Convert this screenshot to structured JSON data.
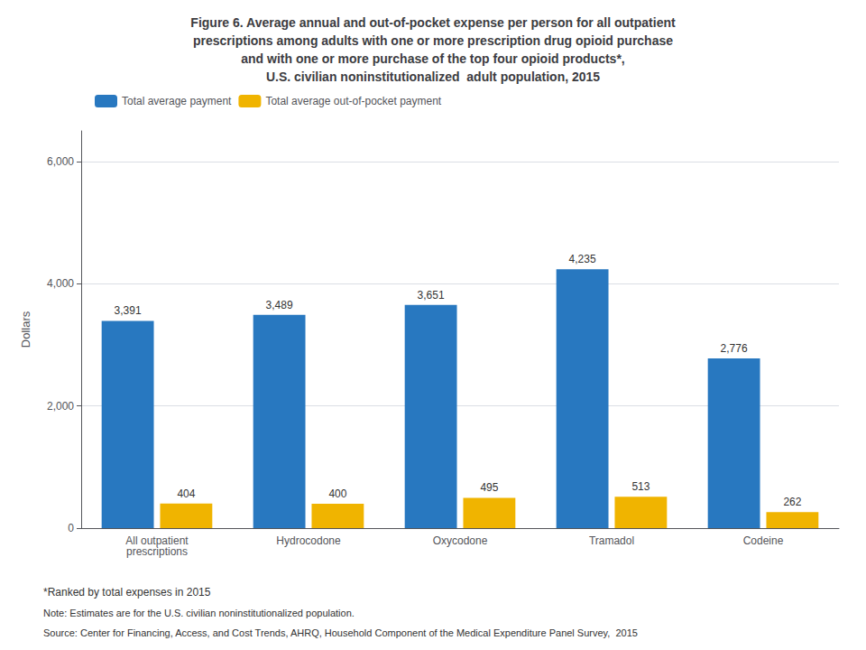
{
  "chart_data": {
    "type": "bar",
    "title": "Figure 6. Average annual and out-of-pocket expense per person for all outpatient\nprescriptions among adults with one or more prescription drug opioid purchase\nand with one or more purchase of the top four opioid products*,\nU.S. civilian noninstitutionalized  adult population, 2015",
    "categories": [
      "All outpatient\nprescriptions",
      "Hydrocodone",
      "Oxycodone",
      "Tramadol",
      "Codeine"
    ],
    "series": [
      {
        "name": "Total average payment",
        "color": "#2878c0",
        "values": [
          3391,
          3489,
          3651,
          4235,
          2776
        ],
        "value_labels": [
          "3,391",
          "3,489",
          "3,651",
          "4,235",
          "2,776"
        ]
      },
      {
        "name": "Total average out-of-pocket payment",
        "color": "#f0b400",
        "values": [
          404,
          400,
          495,
          513,
          262
        ],
        "value_labels": [
          "404",
          "400",
          "495",
          "513",
          "262"
        ]
      }
    ],
    "ylabel": "Dollars",
    "ylim": [
      0,
      6500
    ],
    "yticks": [
      0,
      {
        "value": 2000,
        "label": "2,000"
      },
      {
        "value": 4000,
        "label": "4,000"
      },
      {
        "value": 6000,
        "label": "6,000"
      }
    ],
    "grid": true,
    "legend": "upper left",
    "data_labels": true,
    "annotations": [
      "*Ranked by total expenses in 2015",
      "Note: Estimates are for the U.S. civilian noninstitutionalized population.",
      "Source: Center for Financing, Access, and Cost Trends, AHRQ, Household Component of the Medical Expenditure Panel Survey,  2015"
    ]
  }
}
